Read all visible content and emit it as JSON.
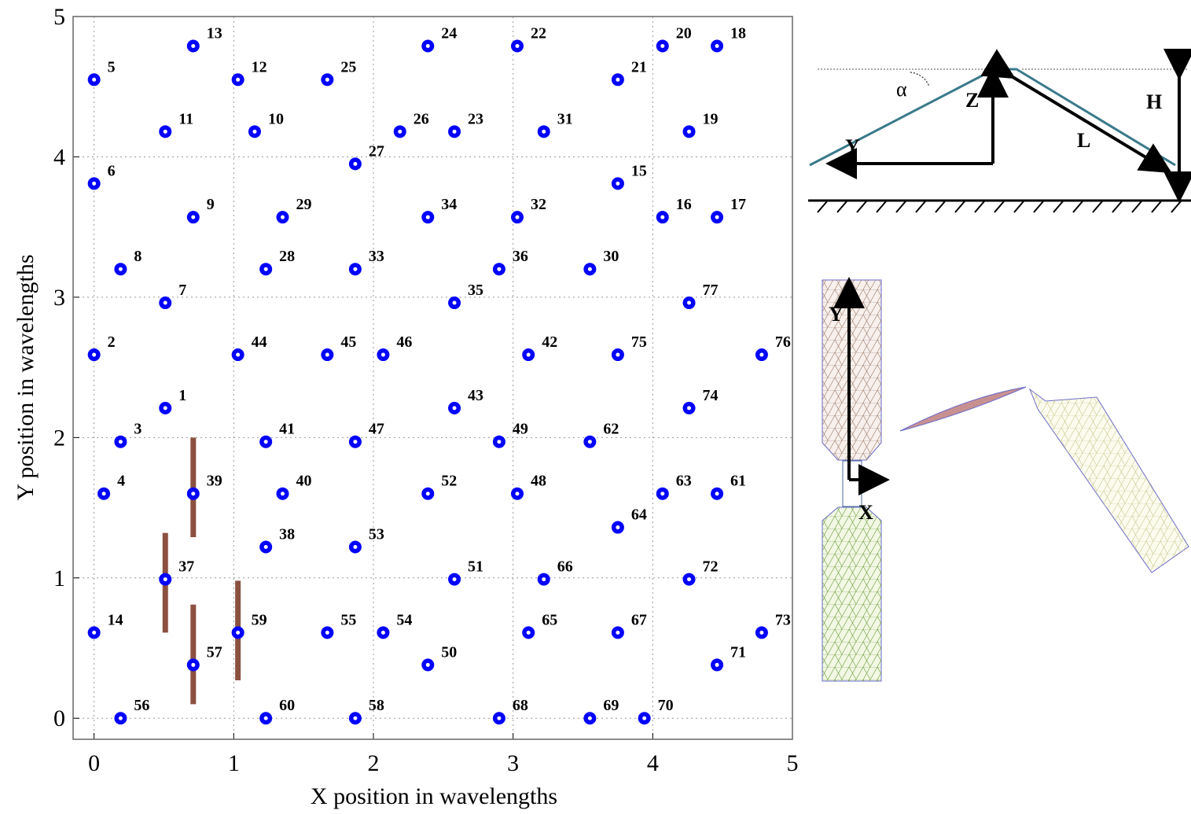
{
  "chart_data": {
    "type": "scatter",
    "xlabel": "X position in wavelengths",
    "ylabel": "Y position in wavelengths",
    "xlim": [
      -0.15,
      5
    ],
    "ylim": [
      -0.15,
      5
    ],
    "xticks": [
      0,
      1,
      2,
      3,
      4,
      5
    ],
    "yticks": [
      0,
      1,
      2,
      3,
      4,
      5
    ],
    "grid": true,
    "series": [
      {
        "color": "#0000ff",
        "labels": [
          "5",
          "13",
          "12",
          "25",
          "24",
          "22",
          "20",
          "18",
          "21",
          "11",
          "10",
          "26",
          "23",
          "31",
          "19",
          "27",
          "6",
          "15",
          "9",
          "29",
          "34",
          "32",
          "16",
          "17",
          "8",
          "28",
          "33",
          "36",
          "30",
          "7",
          "35",
          "77",
          "2",
          "44",
          "45",
          "46",
          "42",
          "75",
          "76",
          "1",
          "43",
          "74",
          "3",
          "41",
          "47",
          "49",
          "62",
          "4",
          "39",
          "40",
          "52",
          "48",
          "63",
          "61",
          "64",
          "38",
          "53",
          "37",
          "51",
          "66",
          "72",
          "14",
          "59",
          "55",
          "54",
          "65",
          "67",
          "73",
          "57",
          "50",
          "71",
          "56",
          "60",
          "58",
          "68",
          "69",
          "70"
        ],
        "x": [
          0,
          0.71,
          1.03,
          1.67,
          2.39,
          3.03,
          4.07,
          4.46,
          3.75,
          0.51,
          1.15,
          2.19,
          2.58,
          3.22,
          4.26,
          1.87,
          0,
          3.75,
          0.71,
          1.35,
          2.39,
          3.03,
          4.07,
          4.46,
          0.19,
          1.23,
          1.87,
          2.9,
          3.55,
          0.51,
          2.58,
          4.26,
          0,
          1.03,
          1.67,
          2.07,
          3.11,
          3.75,
          4.78,
          0.51,
          2.58,
          4.26,
          0.19,
          1.23,
          1.87,
          2.9,
          3.55,
          0.07,
          0.71,
          1.35,
          2.39,
          3.03,
          4.07,
          4.46,
          3.75,
          1.23,
          1.87,
          0.51,
          2.58,
          3.22,
          4.26,
          0,
          1.03,
          1.67,
          2.07,
          3.11,
          3.75,
          4.78,
          0.71,
          2.39,
          4.46,
          0.19,
          1.23,
          1.87,
          2.9,
          3.55,
          3.94
        ],
        "values": [
          4.55,
          4.79,
          4.55,
          4.55,
          4.79,
          4.79,
          4.79,
          4.79,
          4.55,
          4.18,
          4.18,
          4.18,
          4.18,
          4.18,
          4.18,
          3.95,
          3.81,
          3.81,
          3.57,
          3.57,
          3.57,
          3.57,
          3.57,
          3.57,
          3.2,
          3.2,
          3.2,
          3.2,
          3.2,
          2.96,
          2.96,
          2.96,
          2.59,
          2.59,
          2.59,
          2.59,
          2.59,
          2.59,
          2.59,
          2.21,
          2.21,
          2.21,
          1.97,
          1.97,
          1.97,
          1.97,
          1.97,
          1.6,
          1.6,
          1.6,
          1.6,
          1.6,
          1.6,
          1.6,
          1.36,
          1.22,
          1.22,
          0.99,
          0.99,
          0.99,
          0.99,
          0.61,
          0.61,
          0.61,
          0.61,
          0.61,
          0.61,
          0.61,
          0.38,
          0.38,
          0.38,
          0,
          0,
          0,
          0,
          0,
          0
        ]
      }
    ],
    "segments": {
      "color": "#8b5040",
      "x": [
        0.71,
        0.51,
        0.71,
        1.03
      ],
      "y0": [
        2.0,
        1.32,
        0.81,
        0.98
      ],
      "y1": [
        1.29,
        0.61,
        0.1,
        0.27
      ]
    }
  },
  "diagrams": {
    "side_view": {
      "alpha": "α",
      "z": "Z",
      "y": "Y",
      "l": "L",
      "h": "H"
    },
    "mesh": {
      "y": "Y",
      "x": "X"
    }
  }
}
